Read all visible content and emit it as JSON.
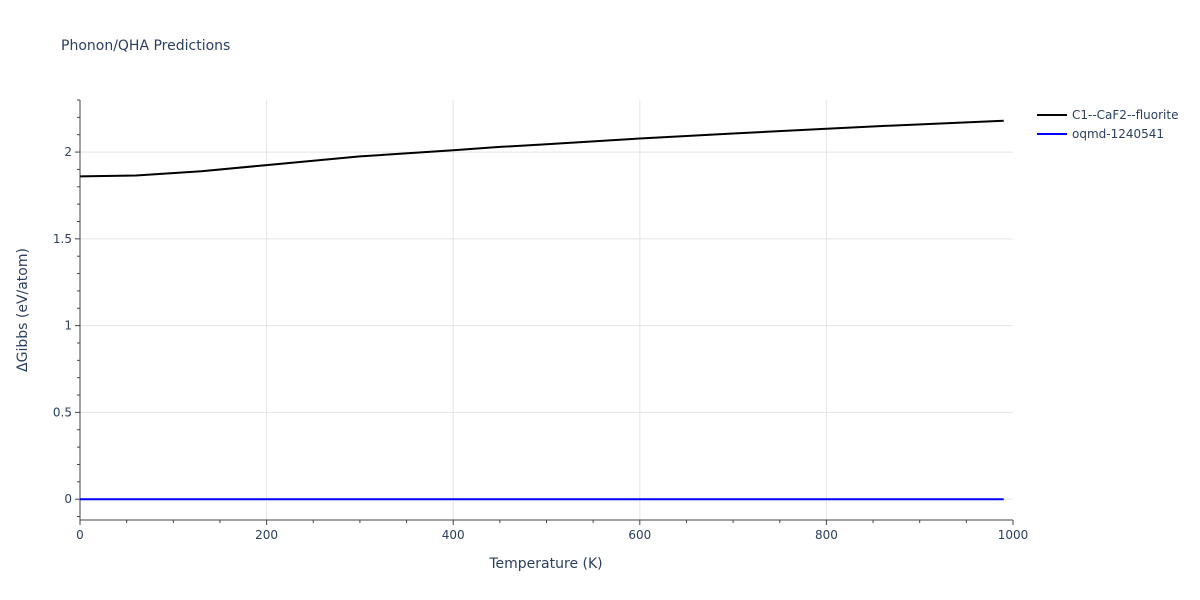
{
  "chart_data": {
    "type": "line",
    "title": "Phonon/QHA Predictions",
    "xlabel": "Temperature (K)",
    "ylabel": "ΔGibbs (eV/atom)",
    "xlim": [
      0,
      1000
    ],
    "ylim": [
      -0.12,
      2.3
    ],
    "x_ticks": [
      0,
      200,
      400,
      600,
      800,
      1000
    ],
    "x_tick_labels": [
      "0",
      "200",
      "400",
      "600",
      "800",
      "1000"
    ],
    "y_ticks": [
      0,
      0.5,
      1,
      1.5,
      2
    ],
    "y_tick_labels": [
      "0",
      "0.5",
      "1",
      "1.5",
      "2"
    ],
    "grid": true,
    "legend_position": "top-right, outside plot",
    "series": [
      {
        "name": "C1--CaF2--fluorite",
        "color": "#000000",
        "x": [
          0,
          60,
          130,
          200,
          300,
          400,
          450,
          500,
          600,
          700,
          800,
          860,
          990
        ],
        "y": [
          1.86,
          1.865,
          1.89,
          1.925,
          1.975,
          2.01,
          2.03,
          2.045,
          2.078,
          2.107,
          2.134,
          2.15,
          2.18
        ]
      },
      {
        "name": "oqmd-1240541",
        "color": "#0000ff",
        "x": [
          0,
          990
        ],
        "y": [
          0,
          0
        ]
      }
    ]
  }
}
